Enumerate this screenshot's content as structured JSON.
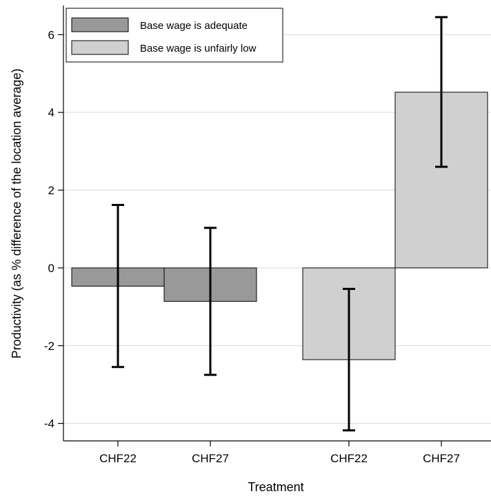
{
  "chart_data": {
    "type": "bar",
    "title": "",
    "xlabel": "Treatment",
    "ylabel": "Productivity (as % difference of the location average)",
    "ylim": [
      -4.45,
      6.75
    ],
    "yticks": [
      -4,
      -2,
      0,
      2,
      4,
      6
    ],
    "ytick_labels": [
      "-4",
      "-2",
      "0",
      "2",
      "4",
      "6"
    ],
    "grid": true,
    "legend_position": "top-left",
    "bars": [
      {
        "category": "CHF22",
        "series": "Base wage is adequate",
        "value": -0.47,
        "ci": [
          -2.55,
          1.62
        ]
      },
      {
        "category": "CHF27",
        "series": "Base wage is adequate",
        "value": -0.86,
        "ci": [
          -2.75,
          1.03
        ]
      },
      {
        "category": "CHF22",
        "series": "Base wage is unfairly low",
        "value": -2.36,
        "ci": [
          -4.18,
          -0.54
        ]
      },
      {
        "category": "CHF27",
        "series": "Base wage is unfairly low",
        "value": 4.52,
        "ci": [
          2.6,
          6.45
        ]
      }
    ],
    "series": [
      {
        "name": "Base wage is adequate",
        "color": "#999999"
      },
      {
        "name": "Base wage is unfairly low",
        "color": "#d0d0d0"
      }
    ]
  }
}
